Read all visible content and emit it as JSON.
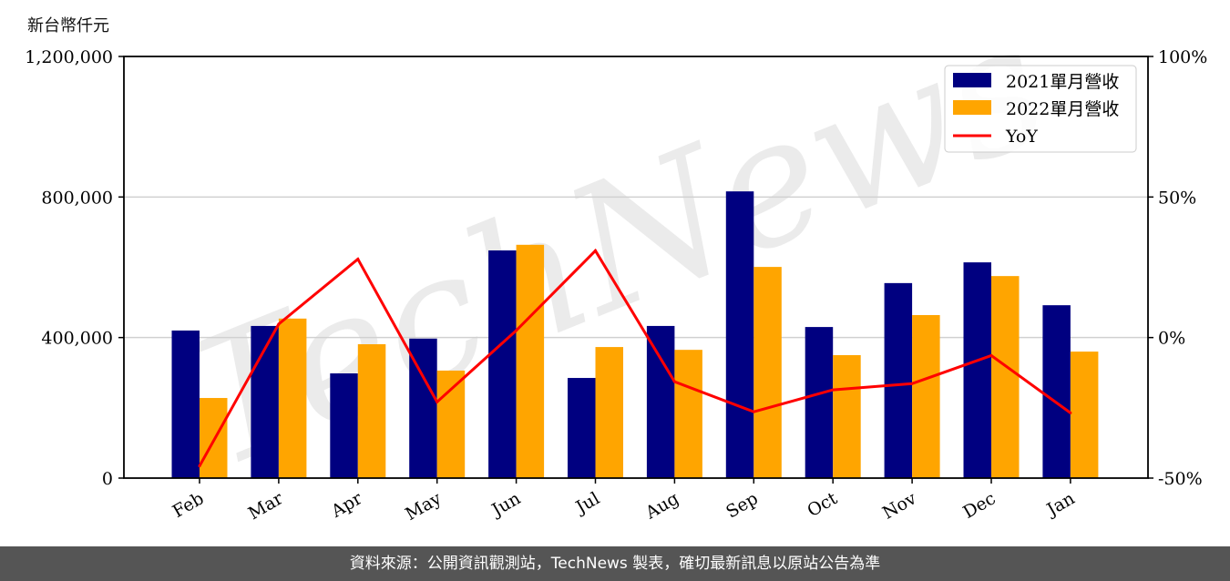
{
  "chart_data": {
    "type": "bar+line",
    "ylabel_left": "新台幣仟元",
    "categories": [
      "Feb",
      "Mar",
      "Apr",
      "May",
      "Jun",
      "Jul",
      "Aug",
      "Sep",
      "Oct",
      "Nov",
      "Dec",
      "Jan"
    ],
    "series": [
      {
        "name": "2021單月營收",
        "type": "bar",
        "axis": "left",
        "color": "#000080",
        "values": [
          420000,
          433000,
          298000,
          397000,
          648000,
          285000,
          433000,
          816000,
          430000,
          555000,
          614000,
          492000
        ]
      },
      {
        "name": "2022單月營收",
        "type": "bar",
        "axis": "left",
        "color": "#FFA500",
        "values": [
          228000,
          454000,
          381000,
          306000,
          664000,
          373000,
          365000,
          601000,
          350000,
          464000,
          575000,
          360000
        ]
      },
      {
        "name": "YoY",
        "type": "line",
        "axis": "right",
        "color": "#FF0000",
        "values": [
          -45.7,
          4.8,
          27.9,
          -22.9,
          2.5,
          30.9,
          -15.7,
          -26.4,
          -18.6,
          -16.4,
          -6.4,
          -26.8
        ]
      }
    ],
    "ylim_left": [
      0,
      1200000
    ],
    "yticks_left": [
      "0",
      "400,000",
      "800,000",
      "1,200,000"
    ],
    "ylim_right": [
      -50,
      100
    ],
    "yticks_right": [
      "-50%",
      "0%",
      "50%",
      "100%"
    ],
    "grid": "horizontal",
    "legend": "top-right"
  },
  "watermark": "TechNews",
  "footer": "資料來源：公開資訊觀測站，TechNews 製表，確切最新訊息以原站公告為準"
}
